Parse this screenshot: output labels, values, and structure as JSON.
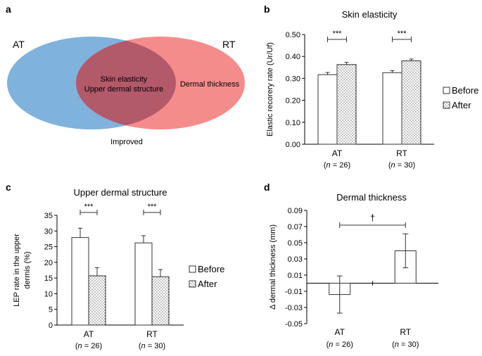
{
  "panels": {
    "a": "a",
    "b": "b",
    "c": "c",
    "d": "d"
  },
  "venn": {
    "left_label": "AT",
    "right_label": "RT",
    "overlap_line1": "Skin elasticity",
    "overlap_line2": "Upper dermal structure",
    "right_only": "Dermal thickness",
    "caption": "Improved",
    "left_color": "#7fb2dc",
    "right_color": "#f58c8c",
    "overlap_color": "#b2596a"
  },
  "chart_data": [
    {
      "id": "b",
      "type": "bar",
      "title": "Skin elasticity",
      "ylabel": "Elastic recorery rate (Ur/Uf)",
      "categories": [
        "AT",
        "RT"
      ],
      "category_n": [
        "(n = 26)",
        "(n = 30)"
      ],
      "series": [
        {
          "name": "Before",
          "values": [
            0.317,
            0.326
          ],
          "errors": [
            0.01,
            0.009
          ]
        },
        {
          "name": "After",
          "values": [
            0.363,
            0.38
          ],
          "errors": [
            0.01,
            0.008
          ]
        }
      ],
      "ylim": [
        0,
        0.5
      ],
      "yticks": [
        "0.00",
        "0.10",
        "0.20",
        "0.30",
        "0.40",
        "0.50"
      ],
      "significance": [
        "***",
        "***"
      ],
      "legend": [
        "Before",
        "After"
      ]
    },
    {
      "id": "c",
      "type": "bar",
      "title": "Upper dermal structure",
      "ylabel_line1": "LEP rate  in the upper",
      "ylabel_line2": "dermis (%)",
      "categories": [
        "AT",
        "RT"
      ],
      "category_n": [
        "(n = 26)",
        "(n = 30)"
      ],
      "series": [
        {
          "name": "Before",
          "values": [
            27.9,
            26.2
          ],
          "errors": [
            3.0,
            2.3
          ]
        },
        {
          "name": "After",
          "values": [
            15.7,
            15.4
          ],
          "errors": [
            2.6,
            2.3
          ]
        }
      ],
      "ylim": [
        0,
        35
      ],
      "yticks": [
        "0",
        "5",
        "10",
        "15",
        "20",
        "25",
        "30",
        "35"
      ],
      "significance": [
        "***",
        "***"
      ],
      "legend": [
        "Before",
        "After"
      ]
    },
    {
      "id": "d",
      "type": "bar",
      "title": "Dermal thickness",
      "ylabel": "Δ dermal thickness (mm)",
      "categories": [
        "AT",
        "RT"
      ],
      "category_n": [
        "(n = 26)",
        "(n = 30)"
      ],
      "series": [
        {
          "name": "Δ",
          "values": [
            -0.014,
            0.04
          ],
          "errors": [
            0.023,
            0.021
          ]
        }
      ],
      "ylim": [
        -0.05,
        0.09
      ],
      "yticks": [
        "0.09",
        "0.07",
        "0.05",
        "0.03",
        "0.01",
        "-0.01",
        "-0.03",
        "-0.05"
      ],
      "significance": [
        "†"
      ]
    }
  ]
}
